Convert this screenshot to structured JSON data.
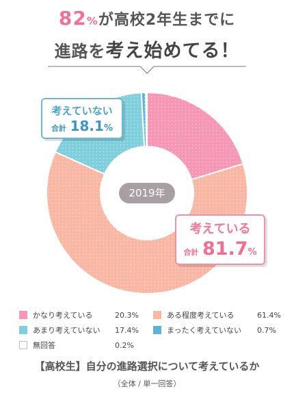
{
  "header": {
    "line1_pct": "82",
    "line1_pct_unit": "%",
    "line1_rest": "が高校2年生までに",
    "line2_prefix": "進路を",
    "line2_bold": "考え始めてる！"
  },
  "center_label": "2019年",
  "callouts": {
    "not_thinking": {
      "label": "考えていない",
      "total_label": "合計",
      "value": "18.1",
      "unit": "%"
    },
    "thinking": {
      "label": "考えている",
      "total_label": "合計",
      "value": "81.7",
      "unit": "%"
    }
  },
  "legend": [
    {
      "label": "かなり考えている",
      "value": "20.3%",
      "color": "#f796b5"
    },
    {
      "label": "ある程度考えている",
      "value": "61.4%",
      "color": "#fbb7a3"
    },
    {
      "label": "あまり考えていない",
      "value": "17.4%",
      "color": "#7fcfdc"
    },
    {
      "label": "まったく考えていない",
      "value": "0.7%",
      "color": "#5cb3d6"
    },
    {
      "label": "無回答",
      "value": "0.2%",
      "color": "#ffffff"
    }
  ],
  "caption": "【高校生】自分の進路選択について考えているか",
  "subcaption": "（全体 / 単一回答）",
  "chart_data": {
    "type": "pie",
    "categories": [
      "かなり考えている",
      "ある程度考えている",
      "あまり考えていない",
      "まったく考えていない",
      "無回答"
    ],
    "values": [
      20.3,
      61.4,
      17.4,
      0.7,
      0.2
    ],
    "colors": [
      "#f796b5",
      "#fbb7a3",
      "#7fcfdc",
      "#5cb3d6",
      "#ffffff"
    ],
    "donut": true,
    "center_text": "2019年"
  }
}
